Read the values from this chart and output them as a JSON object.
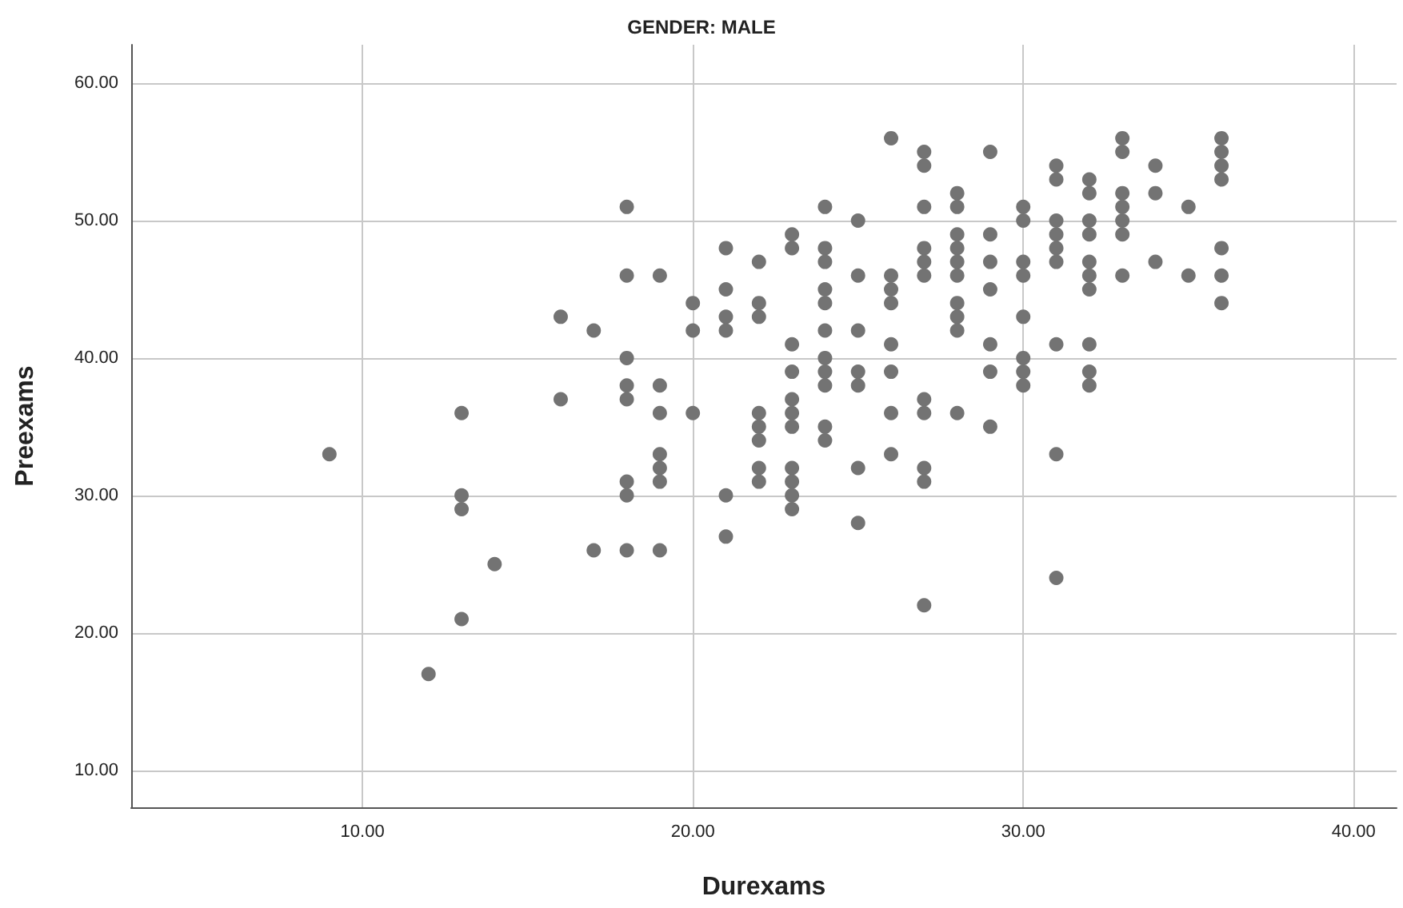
{
  "chart_data": {
    "type": "scatter",
    "title": "GENDER: MALE",
    "xlabel": "Durexams",
    "ylabel": "Preexams",
    "x": [
      9,
      12,
      13,
      13,
      13,
      13,
      14,
      16,
      16,
      17,
      17,
      18,
      18,
      18,
      18,
      18,
      18,
      18,
      18,
      19,
      19,
      19,
      19,
      19,
      19,
      19,
      20,
      20,
      20,
      21,
      21,
      21,
      21,
      21,
      21,
      22,
      22,
      22,
      22,
      22,
      22,
      22,
      22,
      23,
      23,
      23,
      23,
      23,
      23,
      23,
      23,
      23,
      23,
      23,
      24,
      24,
      24,
      24,
      24,
      24,
      24,
      24,
      24,
      24,
      24,
      25,
      25,
      25,
      25,
      25,
      25,
      25,
      26,
      26,
      26,
      26,
      26,
      26,
      26,
      26,
      27,
      27,
      27,
      27,
      27,
      27,
      27,
      27,
      27,
      27,
      27,
      28,
      28,
      28,
      28,
      28,
      28,
      28,
      28,
      28,
      28,
      29,
      29,
      29,
      29,
      29,
      29,
      29,
      30,
      30,
      30,
      30,
      30,
      30,
      30,
      30,
      31,
      31,
      31,
      31,
      31,
      31,
      31,
      31,
      31,
      32,
      32,
      32,
      32,
      32,
      32,
      32,
      32,
      32,
      32,
      33,
      33,
      33,
      33,
      33,
      33,
      33,
      34,
      34,
      34,
      35,
      35,
      36,
      36,
      36,
      36,
      36,
      36,
      36
    ],
    "series": [
      {
        "color": "#737373",
        "values": [
          33,
          17,
          36,
          30,
          29,
          21,
          25,
          43,
          37,
          42,
          26,
          51,
          46,
          40,
          38,
          37,
          31,
          30,
          26,
          46,
          38,
          36,
          33,
          32,
          31,
          26,
          44,
          42,
          36,
          48,
          45,
          43,
          42,
          30,
          27,
          47,
          44,
          43,
          36,
          35,
          34,
          32,
          31,
          49,
          48,
          41,
          39,
          37,
          36,
          35,
          32,
          31,
          30,
          29,
          51,
          48,
          47,
          45,
          44,
          42,
          40,
          39,
          38,
          35,
          34,
          50,
          46,
          42,
          39,
          38,
          32,
          28,
          56,
          46,
          45,
          44,
          41,
          39,
          36,
          33,
          55,
          54,
          51,
          48,
          47,
          46,
          37,
          36,
          32,
          31,
          22,
          52,
          51,
          49,
          48,
          47,
          46,
          44,
          43,
          42,
          36,
          55,
          49,
          47,
          45,
          41,
          39,
          35,
          51,
          50,
          47,
          46,
          43,
          40,
          39,
          38,
          54,
          53,
          50,
          49,
          48,
          47,
          41,
          33,
          24,
          53,
          52,
          50,
          49,
          47,
          46,
          45,
          41,
          39,
          38,
          56,
          55,
          52,
          51,
          50,
          49,
          46,
          54,
          52,
          47,
          51,
          46,
          56,
          55,
          54,
          53,
          48,
          46,
          44
        ]
      }
    ],
    "xlim": [
      3,
      41.3
    ],
    "ylim": [
      7.3,
      62.8
    ],
    "xticks": [
      {
        "value": 10,
        "label": "10.00"
      },
      {
        "value": 20,
        "label": "20.00"
      },
      {
        "value": 30,
        "label": "30.00"
      },
      {
        "value": 40,
        "label": "40.00"
      }
    ],
    "yticks": [
      {
        "value": 10,
        "label": "10.00"
      },
      {
        "value": 20,
        "label": "20.00"
      },
      {
        "value": 30,
        "label": "30.00"
      },
      {
        "value": 40,
        "label": "40.00"
      },
      {
        "value": 50,
        "label": "50.00"
      },
      {
        "value": 60,
        "label": "60.00"
      }
    ],
    "grid": true,
    "marker": "circle"
  }
}
